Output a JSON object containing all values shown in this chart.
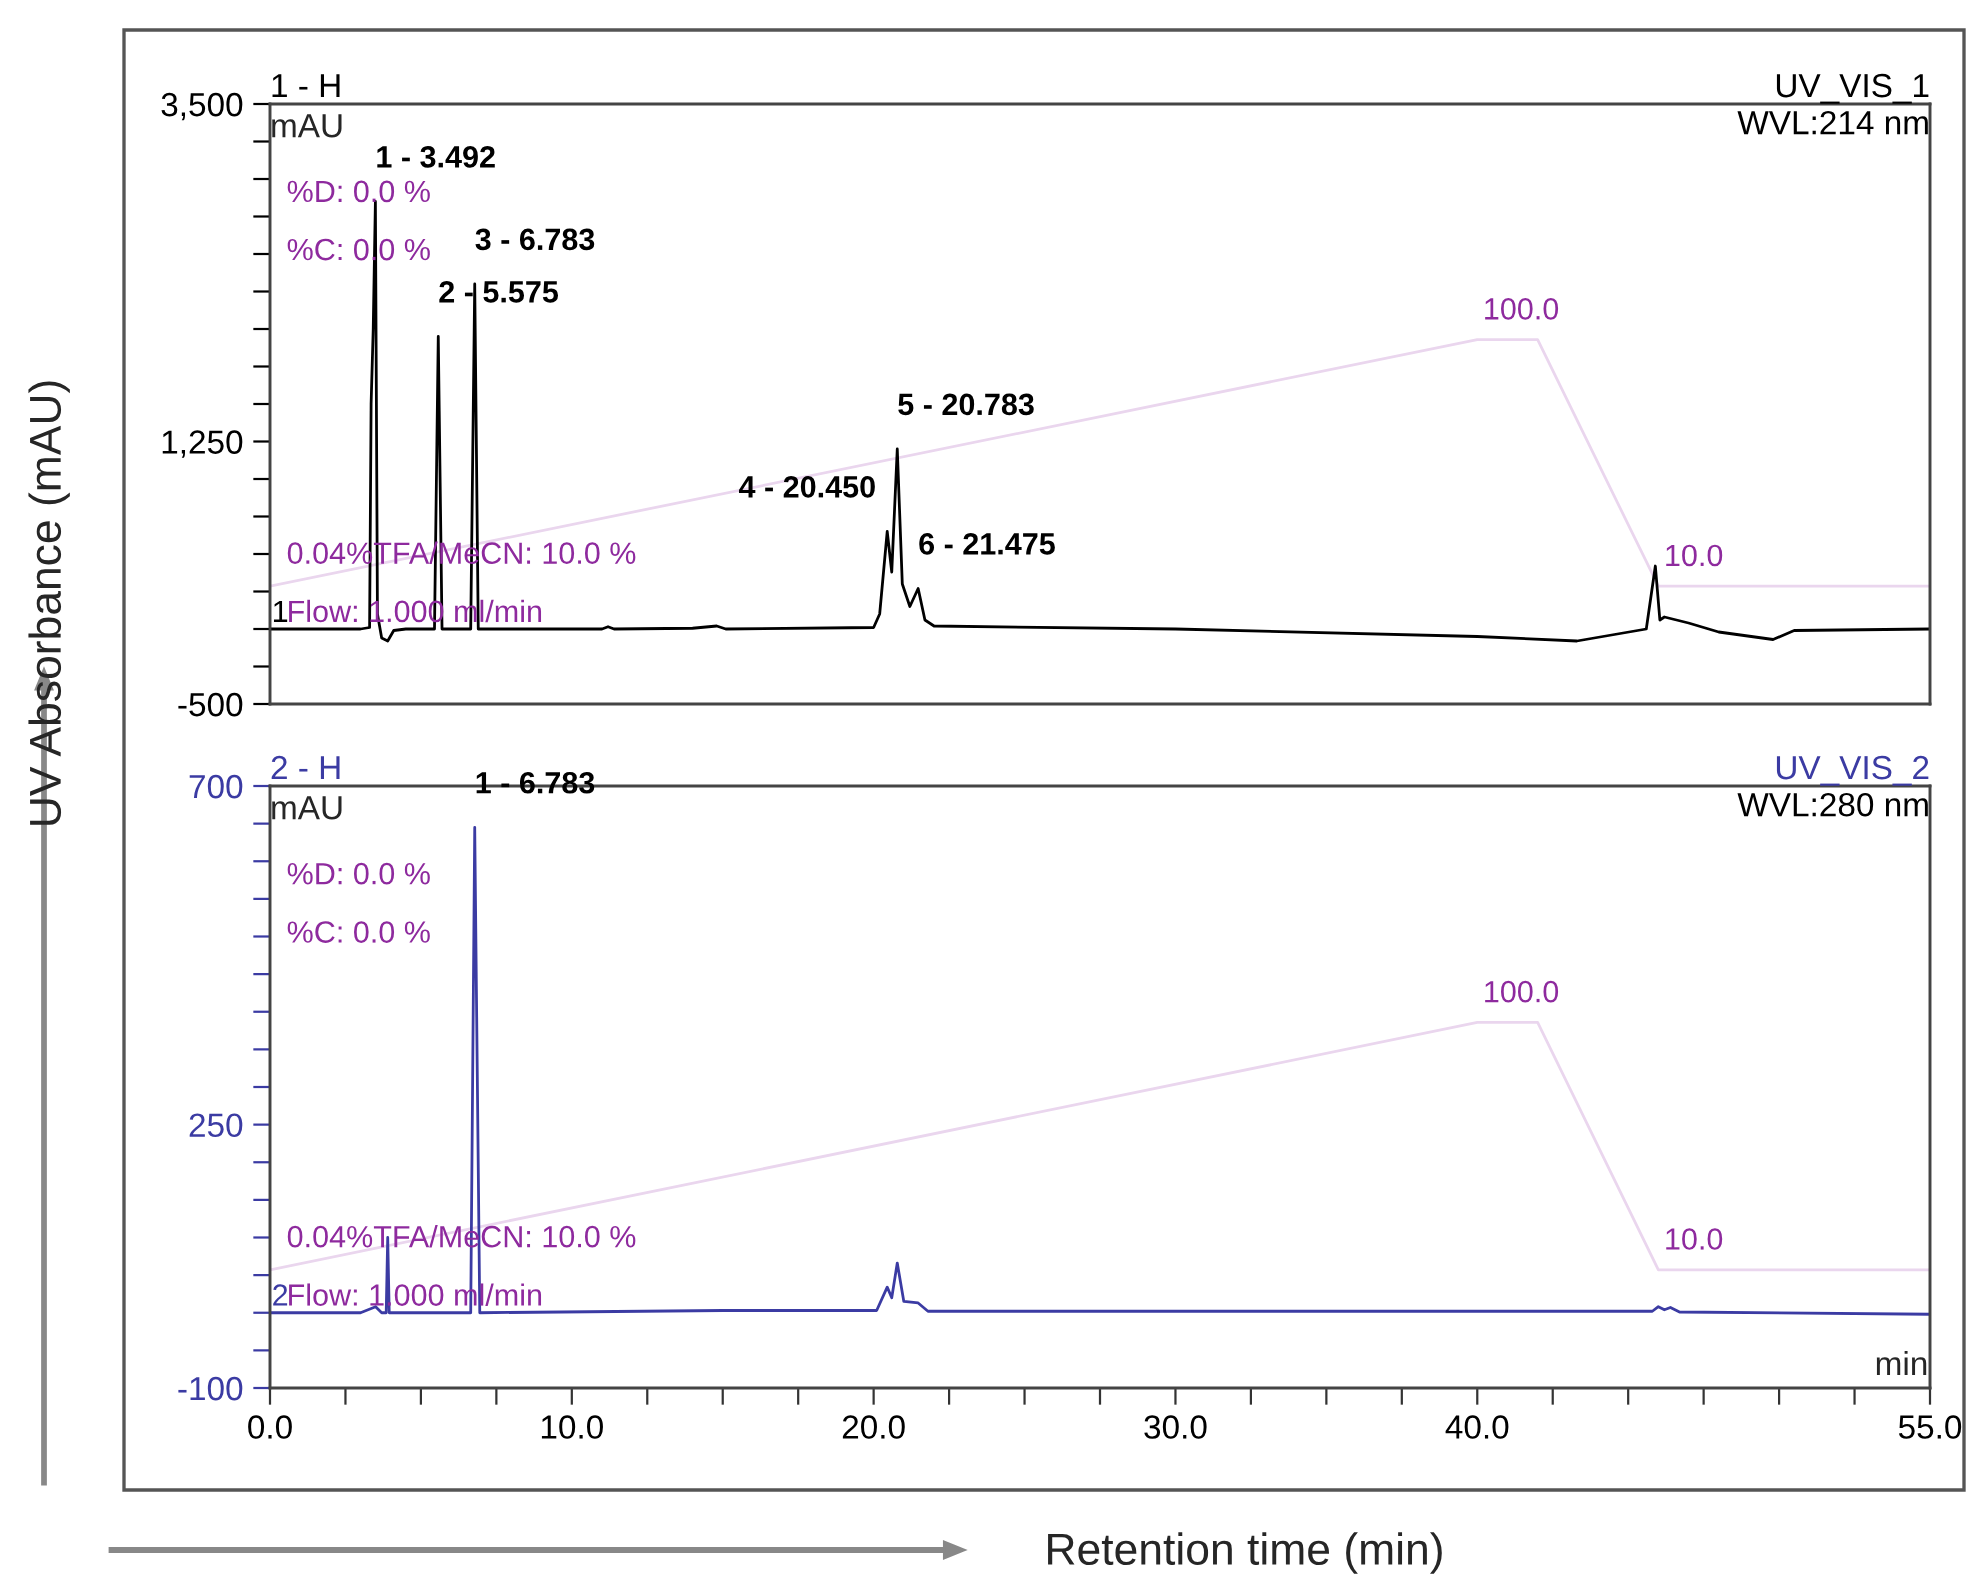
{
  "chart_data": [
    {
      "type": "line",
      "ylabel": "mAU",
      "xlim": [
        0,
        55
      ],
      "ylim": [
        -500,
        3500
      ],
      "tick_labels": "y",
      "yticks": [
        {
          "value": -500,
          "label": "-500"
        },
        {
          "value": -250,
          "label": null
        },
        {
          "value": 0,
          "label": null
        },
        {
          "value": 250,
          "label": null
        },
        {
          "value": 500,
          "label": null
        },
        {
          "value": 750,
          "label": null
        },
        {
          "value": 1000,
          "label": null
        },
        {
          "value": 1250,
          "label": "1,250"
        },
        {
          "value": 1500,
          "label": null
        },
        {
          "value": 1750,
          "label": null
        },
        {
          "value": 2000,
          "label": null
        },
        {
          "value": 2250,
          "label": null
        },
        {
          "value": 2500,
          "label": null
        },
        {
          "value": 2750,
          "label": null
        },
        {
          "value": 3000,
          "label": null
        },
        {
          "value": 3250,
          "label": null
        },
        {
          "value": 3500,
          "label": "3,500"
        }
      ],
      "y2lim": [
        -33,
        186
      ],
      "grid": false,
      "legend": false,
      "marker": "none",
      "line_style": "solid",
      "series": [
        {
          "color": "#000000",
          "x": [
            0,
            3.0,
            3.3,
            3.35,
            3.42,
            3.492,
            3.56,
            3.7,
            3.9,
            4.1,
            4.5,
            5.45,
            5.575,
            5.7,
            6.65,
            6.783,
            6.9,
            8,
            11,
            11.2,
            11.4,
            14,
            14.8,
            15.1,
            20.0,
            20.2,
            20.45,
            20.6,
            20.783,
            20.95,
            21.2,
            21.475,
            21.7,
            22.0,
            30,
            40,
            43.3,
            45.6,
            45.9,
            46.05,
            46.2,
            47,
            48,
            49.8,
            50.5,
            55
          ],
          "values": [
            0,
            0,
            10,
            1500,
            2000,
            2850,
            100,
            -60,
            -80,
            -10,
            0,
            0,
            1950,
            0,
            0,
            2300,
            0,
            0,
            0,
            15,
            0,
            5,
            20,
            0,
            10,
            100,
            650,
            380,
            1200,
            300,
            150,
            270,
            60,
            20,
            0,
            -50,
            -80,
            0,
            420,
            60,
            80,
            40,
            -20,
            -70,
            -10,
            0
          ]
        },
        {
          "color": "#ead6ee",
          "axis": "y2",
          "x": [
            0,
            40,
            42,
            46,
            55
          ],
          "values": [
            10,
            100,
            100,
            10,
            10
          ],
          "value_labels": [
            null,
            "100.0",
            null,
            "10.0",
            null
          ]
        }
      ],
      "annotations": [
        "1 - H",
        "UV_VIS_1",
        "WVL:214 nm",
        "%D: 0.0 %",
        "%C: 0.0 %",
        "0.04%TFA/MeCN: 10.0 %",
        "Flow: 1.000 ml/min",
        "1",
        "UV Absorbance (mAU)",
        {
          "text": "1 - 3.492",
          "x": 3.492,
          "y": 2850
        },
        {
          "text": "2 - 5.575",
          "x": 5.575,
          "y": 1950
        },
        {
          "text": "3 - 6.783",
          "x": 6.783,
          "y": 2300
        },
        {
          "text": "4 - 20.450",
          "x": 20.45,
          "y": 650
        },
        {
          "text": "5 - 20.783",
          "x": 20.783,
          "y": 1200
        },
        {
          "text": "6 - 21.475",
          "x": 21.475,
          "y": 270
        }
      ]
    },
    {
      "type": "line",
      "ylabel": "mAU",
      "xlabel": "min",
      "xlim": [
        0,
        55
      ],
      "ylim": [
        -100,
        700
      ],
      "xticks": [
        {
          "value": 0,
          "label": "0.0"
        },
        {
          "value": 2.5,
          "label": null
        },
        {
          "value": 5,
          "label": null
        },
        {
          "value": 7.5,
          "label": null
        },
        {
          "value": 10,
          "label": "10.0"
        },
        {
          "value": 12.5,
          "label": null
        },
        {
          "value": 15,
          "label": null
        },
        {
          "value": 17.5,
          "label": null
        },
        {
          "value": 20,
          "label": "20.0"
        },
        {
          "value": 22.5,
          "label": null
        },
        {
          "value": 25,
          "label": null
        },
        {
          "value": 27.5,
          "label": null
        },
        {
          "value": 30,
          "label": "30.0"
        },
        {
          "value": 32.5,
          "label": null
        },
        {
          "value": 35,
          "label": null
        },
        {
          "value": 37.5,
          "label": null
        },
        {
          "value": 40,
          "label": "40.0"
        },
        {
          "value": 42.5,
          "label": null
        },
        {
          "value": 45,
          "label": null
        },
        {
          "value": 47.5,
          "label": null
        },
        {
          "value": 50,
          "label": null
        },
        {
          "value": 52.5,
          "label": null
        },
        {
          "value": 55,
          "label": "55.0"
        }
      ],
      "yticks": [
        -100,
        {
          "value": -50,
          "label": null
        },
        {
          "value": 0,
          "label": null
        },
        {
          "value": 50,
          "label": null
        },
        {
          "value": 100,
          "label": null
        },
        {
          "value": 150,
          "label": null
        },
        {
          "value": 200,
          "label": null
        },
        250,
        {
          "value": 300,
          "label": null
        },
        {
          "value": 350,
          "label": null
        },
        {
          "value": 400,
          "label": null
        },
        {
          "value": 450,
          "label": null
        },
        {
          "value": 500,
          "label": null
        },
        {
          "value": 550,
          "label": null
        },
        {
          "value": 600,
          "label": null
        },
        {
          "value": 650,
          "label": null
        },
        700
      ],
      "y2lim": [
        -33,
        186
      ],
      "grid": false,
      "legend": false,
      "marker": "none",
      "line_style": "solid",
      "series": [
        {
          "color": "#3b3ba3",
          "x": [
            0,
            3.0,
            3.5,
            3.7,
            3.85,
            3.9,
            3.95,
            6.65,
            6.783,
            6.95,
            15,
            20.1,
            20.45,
            20.6,
            20.783,
            21.0,
            21.475,
            21.8,
            45.8,
            46.0,
            46.2,
            46.4,
            46.7,
            55
          ],
          "values": [
            0,
            0,
            8,
            0,
            0,
            100,
            0,
            0,
            645,
            0,
            3,
            3,
            34,
            20,
            66,
            15,
            13,
            2,
            2,
            8,
            4,
            7,
            1,
            -2
          ]
        },
        {
          "color": "#ead6ee",
          "axis": "y2",
          "x": [
            0,
            40,
            42,
            46,
            55
          ],
          "values": [
            10,
            100,
            100,
            10,
            10
          ],
          "value_labels": [
            null,
            "100.0",
            null,
            "10.0",
            null
          ]
        }
      ],
      "annotations": [
        "2 - H",
        "UV_VIS_2",
        "WVL:280 nm",
        "%D: 0.0 %",
        "%C: 0.0 %",
        "0.04%TFA/MeCN: 10.0 %",
        "Flow: 1.000 ml/min",
        "2",
        "Retention time (min)",
        {
          "text": "1 - 6.783",
          "x": 6.783,
          "y": 645
        }
      ]
    }
  ]
}
